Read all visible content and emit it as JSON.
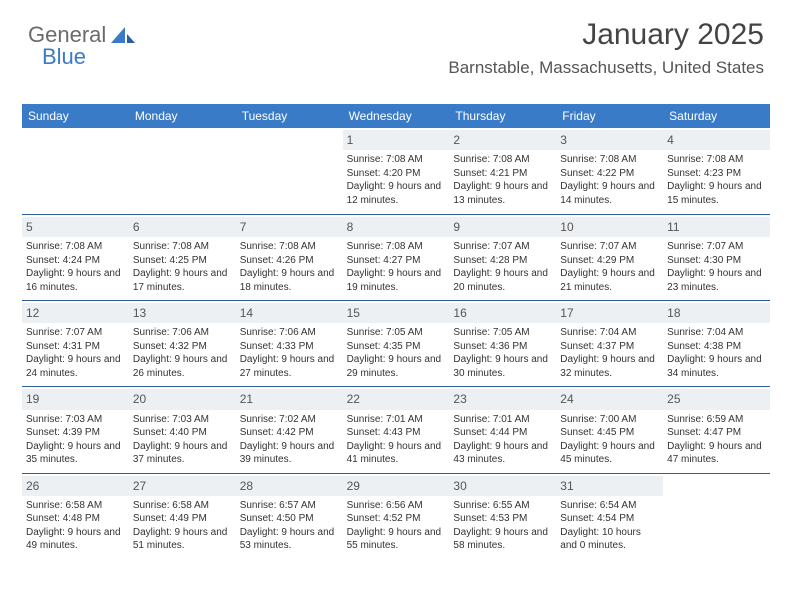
{
  "logo": {
    "word1": "General",
    "word2": "Blue"
  },
  "header": {
    "month_title": "January 2025",
    "location": "Barnstable, Massachusetts, United States"
  },
  "colors": {
    "header_bg": "#3a7bc8",
    "header_text": "#ffffff",
    "day_bg": "#edf0f2",
    "row_border": "#2f5f9a",
    "body_text": "#333333"
  },
  "day_names": [
    "Sunday",
    "Monday",
    "Tuesday",
    "Wednesday",
    "Thursday",
    "Friday",
    "Saturday"
  ],
  "weeks": [
    [
      {
        "empty": true
      },
      {
        "empty": true
      },
      {
        "empty": true
      },
      {
        "num": "1",
        "sunrise": "7:08 AM",
        "sunset": "4:20 PM",
        "daylight": "9 hours and 12 minutes."
      },
      {
        "num": "2",
        "sunrise": "7:08 AM",
        "sunset": "4:21 PM",
        "daylight": "9 hours and 13 minutes."
      },
      {
        "num": "3",
        "sunrise": "7:08 AM",
        "sunset": "4:22 PM",
        "daylight": "9 hours and 14 minutes."
      },
      {
        "num": "4",
        "sunrise": "7:08 AM",
        "sunset": "4:23 PM",
        "daylight": "9 hours and 15 minutes."
      }
    ],
    [
      {
        "num": "5",
        "sunrise": "7:08 AM",
        "sunset": "4:24 PM",
        "daylight": "9 hours and 16 minutes."
      },
      {
        "num": "6",
        "sunrise": "7:08 AM",
        "sunset": "4:25 PM",
        "daylight": "9 hours and 17 minutes."
      },
      {
        "num": "7",
        "sunrise": "7:08 AM",
        "sunset": "4:26 PM",
        "daylight": "9 hours and 18 minutes."
      },
      {
        "num": "8",
        "sunrise": "7:08 AM",
        "sunset": "4:27 PM",
        "daylight": "9 hours and 19 minutes."
      },
      {
        "num": "9",
        "sunrise": "7:07 AM",
        "sunset": "4:28 PM",
        "daylight": "9 hours and 20 minutes."
      },
      {
        "num": "10",
        "sunrise": "7:07 AM",
        "sunset": "4:29 PM",
        "daylight": "9 hours and 21 minutes."
      },
      {
        "num": "11",
        "sunrise": "7:07 AM",
        "sunset": "4:30 PM",
        "daylight": "9 hours and 23 minutes."
      }
    ],
    [
      {
        "num": "12",
        "sunrise": "7:07 AM",
        "sunset": "4:31 PM",
        "daylight": "9 hours and 24 minutes."
      },
      {
        "num": "13",
        "sunrise": "7:06 AM",
        "sunset": "4:32 PM",
        "daylight": "9 hours and 26 minutes."
      },
      {
        "num": "14",
        "sunrise": "7:06 AM",
        "sunset": "4:33 PM",
        "daylight": "9 hours and 27 minutes."
      },
      {
        "num": "15",
        "sunrise": "7:05 AM",
        "sunset": "4:35 PM",
        "daylight": "9 hours and 29 minutes."
      },
      {
        "num": "16",
        "sunrise": "7:05 AM",
        "sunset": "4:36 PM",
        "daylight": "9 hours and 30 minutes."
      },
      {
        "num": "17",
        "sunrise": "7:04 AM",
        "sunset": "4:37 PM",
        "daylight": "9 hours and 32 minutes."
      },
      {
        "num": "18",
        "sunrise": "7:04 AM",
        "sunset": "4:38 PM",
        "daylight": "9 hours and 34 minutes."
      }
    ],
    [
      {
        "num": "19",
        "sunrise": "7:03 AM",
        "sunset": "4:39 PM",
        "daylight": "9 hours and 35 minutes."
      },
      {
        "num": "20",
        "sunrise": "7:03 AM",
        "sunset": "4:40 PM",
        "daylight": "9 hours and 37 minutes."
      },
      {
        "num": "21",
        "sunrise": "7:02 AM",
        "sunset": "4:42 PM",
        "daylight": "9 hours and 39 minutes."
      },
      {
        "num": "22",
        "sunrise": "7:01 AM",
        "sunset": "4:43 PM",
        "daylight": "9 hours and 41 minutes."
      },
      {
        "num": "23",
        "sunrise": "7:01 AM",
        "sunset": "4:44 PM",
        "daylight": "9 hours and 43 minutes."
      },
      {
        "num": "24",
        "sunrise": "7:00 AM",
        "sunset": "4:45 PM",
        "daylight": "9 hours and 45 minutes."
      },
      {
        "num": "25",
        "sunrise": "6:59 AM",
        "sunset": "4:47 PM",
        "daylight": "9 hours and 47 minutes."
      }
    ],
    [
      {
        "num": "26",
        "sunrise": "6:58 AM",
        "sunset": "4:48 PM",
        "daylight": "9 hours and 49 minutes."
      },
      {
        "num": "27",
        "sunrise": "6:58 AM",
        "sunset": "4:49 PM",
        "daylight": "9 hours and 51 minutes."
      },
      {
        "num": "28",
        "sunrise": "6:57 AM",
        "sunset": "4:50 PM",
        "daylight": "9 hours and 53 minutes."
      },
      {
        "num": "29",
        "sunrise": "6:56 AM",
        "sunset": "4:52 PM",
        "daylight": "9 hours and 55 minutes."
      },
      {
        "num": "30",
        "sunrise": "6:55 AM",
        "sunset": "4:53 PM",
        "daylight": "9 hours and 58 minutes."
      },
      {
        "num": "31",
        "sunrise": "6:54 AM",
        "sunset": "4:54 PM",
        "daylight": "10 hours and 0 minutes."
      },
      {
        "empty": true
      }
    ]
  ],
  "labels": {
    "sunrise": "Sunrise:",
    "sunset": "Sunset:",
    "daylight": "Daylight:"
  }
}
